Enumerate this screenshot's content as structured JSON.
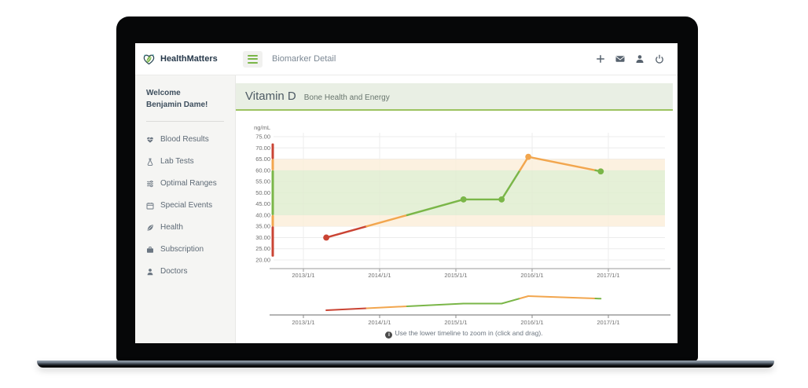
{
  "app": {
    "brand": "HealthMatters",
    "header": {
      "page_title": "Biomarker Detail",
      "menu_icon": "hamburger-icon",
      "action_icons": [
        "plus-icon",
        "mail-icon",
        "user-icon",
        "power-icon"
      ]
    },
    "sidebar": {
      "welcome_line1": "Welcome",
      "welcome_line2": "Benjamin Dame!",
      "items": [
        {
          "label": "Blood Results",
          "icon": "heart-pulse-icon"
        },
        {
          "label": "Lab Tests",
          "icon": "flask-icon"
        },
        {
          "label": "Optimal Ranges",
          "icon": "sliders-icon"
        },
        {
          "label": "Special Events",
          "icon": "calendar-icon"
        },
        {
          "label": "Health",
          "icon": "leaf-icon"
        },
        {
          "label": "Subscription",
          "icon": "briefcase-icon"
        },
        {
          "label": "Doctors",
          "icon": "user-icon"
        }
      ]
    },
    "main": {
      "banner": {
        "title": "Vitamin D",
        "subtitle": "Bone Health and Energy"
      },
      "note": "Use the lower timeline to zoom in (click and drag)."
    }
  },
  "chart_data": {
    "type": "line",
    "title": "Vitamin D",
    "ylabel": "ng/mL",
    "ylim": [
      20,
      75
    ],
    "ytick_step": 5,
    "yticks": [
      "75.00",
      "70.00",
      "65.00",
      "60.00",
      "55.00",
      "50.00",
      "45.00",
      "40.00",
      "35.00",
      "30.00",
      "25.00",
      "20.00"
    ],
    "xticks": [
      {
        "year": 2013,
        "label": "2013/1/1"
      },
      {
        "year": 2014,
        "label": "2014/1/1"
      },
      {
        "year": 2015,
        "label": "2015/1/1"
      },
      {
        "year": 2016,
        "label": "2016/1/1"
      },
      {
        "year": 2017,
        "label": "2017/1/1"
      }
    ],
    "points": [
      {
        "date": "2013-04",
        "x": 2013.3,
        "value": 30.0,
        "status": "below range",
        "color": "red"
      },
      {
        "date": "2015-02",
        "x": 2015.1,
        "value": 47.0,
        "status": "optimal",
        "color": "green"
      },
      {
        "date": "2015-08",
        "x": 2015.6,
        "value": 47.0,
        "status": "optimal",
        "color": "green"
      },
      {
        "date": "2015-12",
        "x": 2015.95,
        "value": 66.0,
        "status": "above range",
        "color": "orange"
      },
      {
        "date": "2016-11",
        "x": 2016.9,
        "value": 59.5,
        "status": "optimal",
        "color": "green"
      }
    ],
    "segments": [
      [
        2013.3,
        30.0,
        2013.83,
        35.0,
        "red"
      ],
      [
        2013.83,
        35.0,
        2014.36,
        40.0,
        "orange"
      ],
      [
        2014.36,
        40.0,
        2015.1,
        47.0,
        "green"
      ],
      [
        2015.1,
        47.0,
        2015.6,
        47.0,
        "green"
      ],
      [
        2015.6,
        47.0,
        2015.84,
        60.0,
        "green"
      ],
      [
        2015.84,
        60.0,
        2015.95,
        66.0,
        "orange"
      ],
      [
        2015.95,
        66.0,
        2016.83,
        60.0,
        "orange"
      ],
      [
        2016.83,
        60.0,
        2016.9,
        59.5,
        "green"
      ]
    ],
    "bands": [
      {
        "from": 35,
        "to": 40,
        "zone": "borderline"
      },
      {
        "from": 40,
        "to": 60,
        "zone": "optimal"
      },
      {
        "from": 60,
        "to": 65,
        "zone": "borderline"
      }
    ],
    "range_bar": [
      {
        "from": 21.5,
        "to": 35,
        "color": "red"
      },
      {
        "from": 35,
        "to": 40,
        "color": "orange"
      },
      {
        "from": 40,
        "to": 60,
        "color": "green"
      },
      {
        "from": 60,
        "to": 65,
        "color": "orange"
      },
      {
        "from": 65,
        "to": 72,
        "color": "red"
      }
    ],
    "colors": {
      "red": "#ca4434",
      "orange": "#f2a64e",
      "green": "#7ab648",
      "band_optimal": "#e0edd0",
      "band_borderline": "#fbeedb",
      "grid": "#ececec",
      "axis": "#9a9a9a",
      "tick_text": "#6f6f6f"
    },
    "legend": null,
    "grid": true
  }
}
